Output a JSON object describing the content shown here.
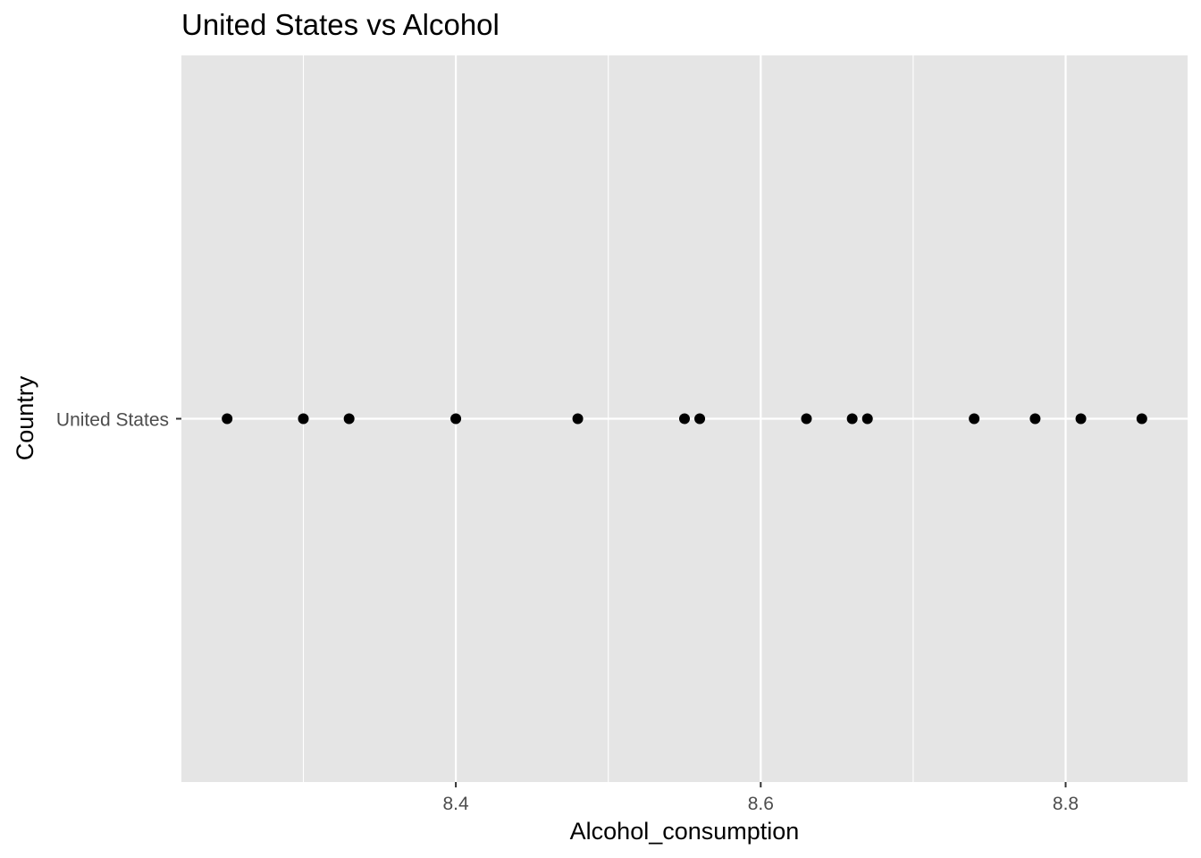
{
  "chart_data": {
    "type": "scatter",
    "title": "United States vs Alcohol",
    "xlabel": "Alcohol_consumption",
    "ylabel": "Country",
    "categories": [
      "United States"
    ],
    "x_ticks": [
      8.4,
      8.6,
      8.8
    ],
    "x_tick_labels": [
      "8.4",
      "8.6",
      "8.8"
    ],
    "xlim": [
      8.22,
      8.88
    ],
    "grid": true,
    "points": [
      {
        "category": "United States",
        "x": 8.25
      },
      {
        "category": "United States",
        "x": 8.3
      },
      {
        "category": "United States",
        "x": 8.33
      },
      {
        "category": "United States",
        "x": 8.4
      },
      {
        "category": "United States",
        "x": 8.48
      },
      {
        "category": "United States",
        "x": 8.55
      },
      {
        "category": "United States",
        "x": 8.56
      },
      {
        "category": "United States",
        "x": 8.63
      },
      {
        "category": "United States",
        "x": 8.66
      },
      {
        "category": "United States",
        "x": 8.67
      },
      {
        "category": "United States",
        "x": 8.74
      },
      {
        "category": "United States",
        "x": 8.78
      },
      {
        "category": "United States",
        "x": 8.81
      },
      {
        "category": "United States",
        "x": 8.85
      }
    ],
    "colors": {
      "panel_background": "#e5e5e5",
      "grid": "#ffffff",
      "point": "#000000",
      "tick_label": "#4d4d4d"
    }
  }
}
